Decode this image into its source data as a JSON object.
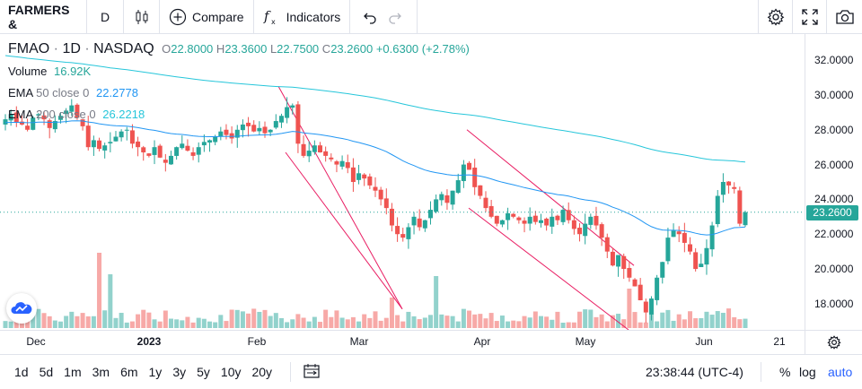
{
  "toolbar": {
    "symbol": "FARMERS &",
    "interval": "D",
    "compare_label": "Compare",
    "indicators_label": "Indicators"
  },
  "legend": {
    "ticker": "FMAO",
    "interval": "1D",
    "exchange": "NASDAQ",
    "open_label": "O",
    "open": "22.8000",
    "high_label": "H",
    "high": "23.3600",
    "low_label": "L",
    "low": "22.7500",
    "close_label": "C",
    "close": "23.2600",
    "change": "+0.6300 (+2.78%)",
    "volume_label": "Volume",
    "volume": "16.92K",
    "ema50_label": "EMA",
    "ema50_params": "50 close 0",
    "ema50": "22.2778",
    "ema200_label": "EMA",
    "ema200_params": "200 close 0",
    "ema200": "26.2218"
  },
  "price_axis": [
    "32.0000",
    "30.0000",
    "28.0000",
    "26.0000",
    "24.0000",
    "22.0000",
    "20.0000",
    "18.0000"
  ],
  "last_price": "23.2600",
  "time_axis": [
    "Dec",
    "2023",
    "Feb",
    "Mar",
    "Apr",
    "May",
    "Jun",
    "21"
  ],
  "ranges": [
    "1d",
    "5d",
    "1m",
    "3m",
    "6m",
    "1y",
    "3y",
    "5y",
    "10y",
    "20y"
  ],
  "clock": "23:38:44 (UTC-4)",
  "scale_options": {
    "percent": "%",
    "log": "log",
    "auto": "auto"
  },
  "colors": {
    "up": "#26a69a",
    "down": "#ef5350",
    "ema50": "#2196f3",
    "ema200": "#26c6da",
    "trendline": "#e91e63"
  },
  "chart_data": {
    "type": "candlestick",
    "ylim": [
      16.5,
      33.5
    ],
    "closes": [
      28.6,
      28.9,
      28.4,
      28.3,
      28.0,
      28.7,
      28.9,
      28.6,
      28.1,
      28.5,
      28.8,
      29.1,
      29.4,
      28.7,
      28.2,
      27.0,
      27.4,
      26.9,
      27.1,
      27.3,
      27.6,
      27.9,
      28.0,
      27.2,
      27.0,
      26.7,
      26.5,
      27.0,
      26.4,
      26.1,
      26.5,
      27.0,
      27.2,
      26.8,
      26.5,
      27.0,
      27.3,
      27.4,
      27.6,
      27.9,
      27.7,
      27.5,
      28.0,
      28.3,
      28.2,
      27.9,
      28.1,
      27.8,
      28.0,
      28.5,
      28.8,
      29.3,
      29.4,
      27.2,
      26.5,
      26.8,
      27.1,
      26.7,
      26.5,
      26.3,
      26.0,
      26.2,
      25.8,
      25.0,
      25.5,
      25.2,
      24.8,
      24.5,
      24.0,
      23.5,
      22.5,
      22.0,
      21.8,
      22.4,
      23.0,
      22.4,
      22.8,
      23.4,
      24.0,
      24.3,
      23.8,
      24.5,
      25.1,
      26.0,
      25.7,
      24.7,
      24.2,
      23.5,
      23.0,
      22.6,
      22.8,
      23.2,
      23.0,
      22.8,
      22.6,
      23.0,
      22.7,
      22.8,
      22.5,
      23.0,
      22.8,
      23.4,
      22.8,
      22.3,
      22.0,
      22.6,
      23.0,
      22.5,
      21.8,
      21.0,
      20.2,
      20.8,
      20.0,
      19.5,
      19.0,
      18.2,
      17.5,
      18.3,
      19.5,
      20.4,
      21.8,
      22.2,
      22.0,
      21.5,
      21.0,
      20.0,
      20.3,
      21.2,
      22.5,
      24.2,
      25.0,
      24.8,
      24.6,
      22.6,
      23.26
    ],
    "ema50_start": 28.4,
    "ema200_start": 32.3
  },
  "trendlines": [
    {
      "from": [
        "Feb",
        30.5
      ],
      "to": [
        "Mar",
        17.7
      ]
    },
    {
      "from": [
        "Feb",
        26.7
      ],
      "to": [
        "Mar",
        17.7
      ]
    },
    {
      "from": [
        "Apr",
        28.0
      ],
      "to": [
        "May",
        20.2
      ]
    },
    {
      "from": [
        "Apr",
        23.5
      ],
      "to": [
        "May",
        16.5
      ]
    }
  ]
}
